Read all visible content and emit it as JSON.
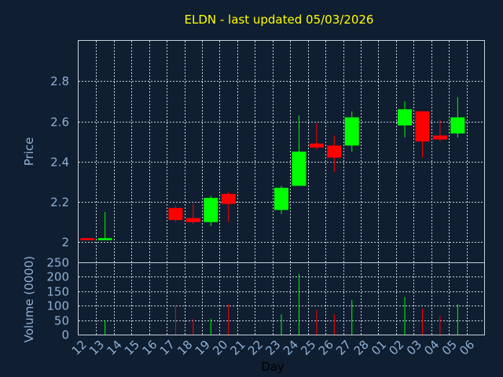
{
  "chart_data": {
    "type": "candlestick",
    "title": "ELDN - last updated 05/03/2026",
    "xlabel": "Day",
    "ylabel_price": "Price",
    "ylabel_volume": "Volume (0000)",
    "price_ticks": [
      "2",
      "2.2",
      "2.4",
      "2.6",
      "2.8"
    ],
    "price_ylim": [
      1.9,
      3.0
    ],
    "volume_ticks": [
      "0",
      "50",
      "100",
      "150",
      "200",
      "250"
    ],
    "volume_ylim": [
      0,
      250
    ],
    "x_labels": [
      "12",
      "13",
      "14",
      "15",
      "16",
      "17",
      "18",
      "19",
      "20",
      "21",
      "22",
      "23",
      "24",
      "25",
      "26",
      "27",
      "28",
      "01",
      "02",
      "03",
      "04",
      "05",
      "06"
    ],
    "up_color": "#00ff00",
    "down_color": "#ff0000",
    "candles": [
      {
        "day": "12",
        "open": 2.02,
        "high": 2.02,
        "low": 2.01,
        "close": 2.01,
        "volume": 0
      },
      {
        "day": "13",
        "open": 2.01,
        "high": 2.15,
        "low": 2.01,
        "close": 2.02,
        "volume": 50
      },
      {
        "day": "17",
        "open": 2.17,
        "high": 2.18,
        "low": 2.1,
        "close": 2.11,
        "volume": 100
      },
      {
        "day": "18",
        "open": 2.12,
        "high": 2.19,
        "low": 2.09,
        "close": 2.1,
        "volume": 55
      },
      {
        "day": "19",
        "open": 2.1,
        "high": 2.23,
        "low": 2.08,
        "close": 2.22,
        "volume": 55
      },
      {
        "day": "20",
        "open": 2.24,
        "high": 2.25,
        "low": 2.1,
        "close": 2.19,
        "volume": 105
      },
      {
        "day": "23",
        "open": 2.16,
        "high": 2.28,
        "low": 2.14,
        "close": 2.27,
        "volume": 70
      },
      {
        "day": "24",
        "open": 2.28,
        "high": 2.63,
        "low": 2.28,
        "close": 2.45,
        "volume": 210
      },
      {
        "day": "25",
        "open": 2.49,
        "high": 2.59,
        "low": 2.46,
        "close": 2.47,
        "volume": 85
      },
      {
        "day": "26",
        "open": 2.48,
        "high": 2.53,
        "low": 2.35,
        "close": 2.42,
        "volume": 70
      },
      {
        "day": "27",
        "open": 2.48,
        "high": 2.65,
        "low": 2.45,
        "close": 2.62,
        "volume": 120
      },
      {
        "day": "02",
        "open": 2.58,
        "high": 2.7,
        "low": 2.52,
        "close": 2.66,
        "volume": 130
      },
      {
        "day": "03",
        "open": 2.65,
        "high": 2.65,
        "low": 2.42,
        "close": 2.5,
        "volume": 90
      },
      {
        "day": "04",
        "open": 2.53,
        "high": 2.61,
        "low": 2.5,
        "close": 2.51,
        "volume": 65
      },
      {
        "day": "05",
        "open": 2.54,
        "high": 2.72,
        "low": 2.52,
        "close": 2.62,
        "volume": 105
      }
    ]
  }
}
